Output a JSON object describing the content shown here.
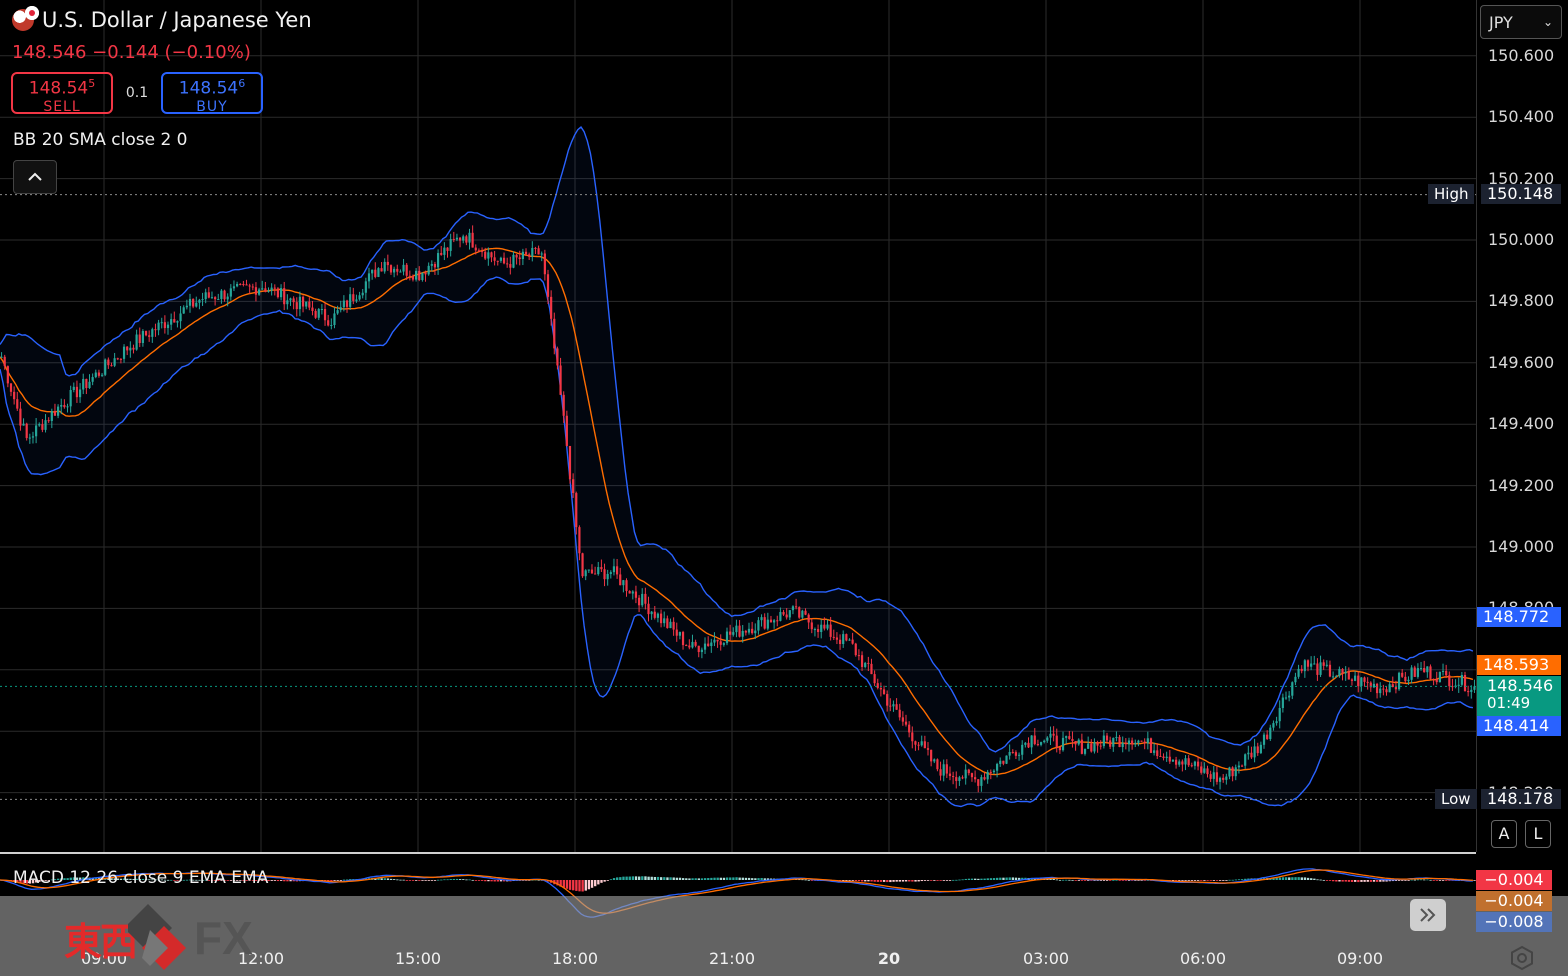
{
  "header": {
    "symbol_name": "U.S. Dollar / Japanese Yen"
  },
  "quote": {
    "last": "148.546",
    "change": "−0.144",
    "change_pct": "(−0.10%)"
  },
  "trade": {
    "sell": {
      "price_main": "148.54",
      "price_sup": "5",
      "label": "SELL"
    },
    "lot": "0.1",
    "buy": {
      "price_main": "148.54",
      "price_sup": "6",
      "label": "BUY"
    }
  },
  "indicators": {
    "bb": "BB 20 SMA close 2 0",
    "macd": "MACD 12 26 close 9 EMA EMA"
  },
  "currency_select": {
    "value": "JPY"
  },
  "price_axis": {
    "ticks": [
      "150.600",
      "150.400",
      "150.200",
      "150.000",
      "149.800",
      "149.600",
      "149.400",
      "149.200",
      "149.000",
      "148.800",
      "148.600",
      "148.400",
      "148.200"
    ],
    "labels": {
      "high_label": "High",
      "high": "150.148",
      "low_label": "Low",
      "low": "148.178",
      "bb_upper": "148.772",
      "bb_basis": "148.593",
      "last": "148.546",
      "countdown": "01:49",
      "bb_lower": "148.414"
    }
  },
  "macd_axis": {
    "hist": "−0.004",
    "signal": "−0.004",
    "macd": "−0.008"
  },
  "time_axis": [
    "09:00",
    "12:00",
    "15:00",
    "18:00",
    "21:00",
    "20",
    "03:00",
    "06:00",
    "09:00"
  ],
  "scale_buttons": {
    "auto": "A",
    "log": "L"
  },
  "brand": {
    "cjk": "東西",
    "fx": "FX"
  },
  "colors": {
    "up": "#26a69a",
    "down": "#f23645",
    "bb": "#2962ff",
    "basis": "#ff6d00",
    "last_bg": "#089981",
    "macd_line": "#2962ff",
    "signal_line": "#ff6d00"
  },
  "chart_data": {
    "type": "candlestick",
    "ylim": [
      148.0,
      150.7
    ],
    "x": [
      "09:00",
      "12:00",
      "15:00",
      "18:00",
      "21:00",
      "20",
      "03:00",
      "06:00",
      "09:00"
    ],
    "close_path": [
      {
        "t": "08:00",
        "v": 149.62
      },
      {
        "t": "08:30",
        "v": 149.35
      },
      {
        "t": "09:00",
        "v": 149.45
      },
      {
        "t": "10:00",
        "v": 149.66
      },
      {
        "t": "11:00",
        "v": 149.81
      },
      {
        "t": "12:00",
        "v": 149.85
      },
      {
        "t": "13:00",
        "v": 149.74
      },
      {
        "t": "14:00",
        "v": 149.92
      },
      {
        "t": "15:00",
        "v": 150.13
      },
      {
        "t": "15:30",
        "v": 149.92
      },
      {
        "t": "16:00",
        "v": 149.89
      },
      {
        "t": "17:00",
        "v": 150.02
      },
      {
        "t": "17:30",
        "v": 149.92
      },
      {
        "t": "18:00",
        "v": 149.96
      },
      {
        "t": "18:30",
        "v": 149.34
      },
      {
        "t": "19:00",
        "v": 148.91
      },
      {
        "t": "20:00",
        "v": 148.92
      },
      {
        "t": "21:00",
        "v": 148.67
      },
      {
        "t": "22:00",
        "v": 148.79
      },
      {
        "t": "23:00",
        "v": 148.68
      },
      {
        "t": "00:00",
        "v": 148.48
      },
      {
        "t": "01:00",
        "v": 148.28
      },
      {
        "t": "02:00",
        "v": 148.24
      },
      {
        "t": "03:00",
        "v": 148.38
      },
      {
        "t": "04:00",
        "v": 148.35
      },
      {
        "t": "05:00",
        "v": 148.38
      },
      {
        "t": "06:00",
        "v": 148.24
      },
      {
        "t": "07:00",
        "v": 148.36
      },
      {
        "t": "08:00",
        "v": 148.62
      },
      {
        "t": "09:00",
        "v": 148.54
      },
      {
        "t": "10:00",
        "v": 148.6
      },
      {
        "t": "10:30",
        "v": 148.546
      }
    ],
    "bollinger": {
      "period": 20,
      "stddev": 2,
      "upper_last": 148.772,
      "basis_last": 148.593,
      "lower_last": 148.414
    },
    "high": 150.148,
    "low": 148.178,
    "last": 148.546
  }
}
